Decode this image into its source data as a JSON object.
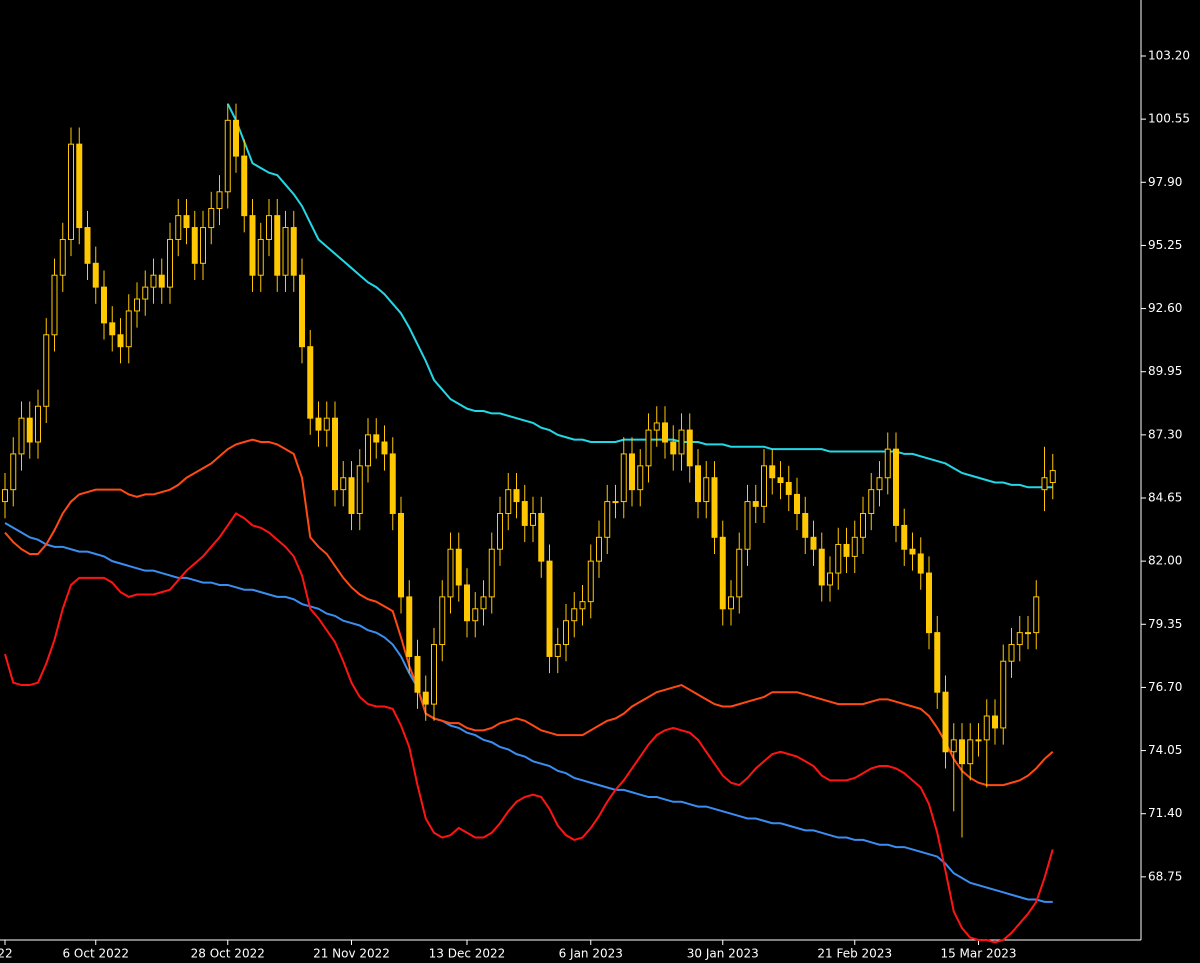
{
  "chart_data": {
    "type": "candlestick",
    "background": "#000000",
    "color": "#ffc800",
    "axis_color": "#ffffff",
    "ylim": [
      66.1,
      105.55
    ],
    "yticks": [
      {
        "value": 103.2,
        "label": "103.20"
      },
      {
        "value": 100.55,
        "label": "100.55"
      },
      {
        "value": 97.9,
        "label": "97.90"
      },
      {
        "value": 95.25,
        "label": "95.25"
      },
      {
        "value": 92.6,
        "label": "92.60"
      },
      {
        "value": 89.95,
        "label": "89.95"
      },
      {
        "value": 87.3,
        "label": "87.30"
      },
      {
        "value": 84.65,
        "label": "84.65"
      },
      {
        "value": 82,
        "label": "82.00"
      },
      {
        "value": 79.35,
        "label": "79.35"
      },
      {
        "value": 76.7,
        "label": "76.70"
      },
      {
        "value": 74.05,
        "label": "74.05"
      },
      {
        "value": 71.4,
        "label": "71.40"
      },
      {
        "value": 68.75,
        "label": "68.75"
      }
    ],
    "categories": [
      "22",
      null,
      null,
      null,
      null,
      null,
      null,
      null,
      null,
      null,
      null,
      "6 Oct 2022",
      null,
      null,
      null,
      null,
      null,
      null,
      null,
      null,
      null,
      null,
      null,
      null,
      null,
      null,
      null,
      "28 Oct 2022",
      null,
      null,
      null,
      null,
      null,
      null,
      null,
      null,
      null,
      null,
      null,
      null,
      null,
      null,
      "21 Nov 2022",
      null,
      null,
      null,
      null,
      null,
      null,
      null,
      null,
      null,
      null,
      null,
      null,
      null,
      "13 Dec 2022",
      null,
      null,
      null,
      null,
      null,
      null,
      null,
      null,
      null,
      null,
      null,
      null,
      null,
      null,
      "6 Jan 2023",
      null,
      null,
      null,
      null,
      null,
      null,
      null,
      null,
      null,
      null,
      null,
      null,
      null,
      null,
      null,
      "30 Jan 2023",
      null,
      null,
      null,
      null,
      null,
      null,
      null,
      null,
      null,
      null,
      null,
      null,
      null,
      null,
      null,
      "21 Feb 2023",
      null,
      null,
      null,
      null,
      null,
      null,
      null,
      null,
      null,
      null,
      null,
      null,
      null,
      null,
      "15 Mar 2023",
      null,
      null,
      null,
      null,
      null,
      null,
      null,
      null,
      null
    ],
    "open": [
      84.5,
      85.0,
      86.5,
      88.0,
      87.0,
      88.5,
      91.5,
      94.0,
      95.5,
      99.5,
      96.0,
      94.5,
      93.5,
      92.0,
      91.5,
      91.0,
      92.5,
      93.0,
      93.5,
      94.0,
      93.5,
      95.5,
      96.5,
      96.0,
      94.5,
      96.0,
      96.8,
      97.5,
      100.5,
      99.0,
      96.5,
      94.0,
      95.5,
      96.5,
      94.0,
      96.0,
      94.0,
      91.0,
      88.0,
      87.5,
      88.0,
      85.0,
      85.5,
      84.0,
      86.0,
      87.3,
      87.0,
      86.5,
      84.0,
      80.5,
      78.0,
      76.5,
      76.0,
      78.5,
      80.5,
      82.5,
      81.0,
      79.5,
      80.0,
      80.5,
      82.5,
      84.0,
      85.0,
      84.5,
      83.5,
      84.0,
      82.0,
      78.0,
      78.5,
      79.5,
      80.0,
      80.3,
      82.0,
      83.0,
      84.5,
      84.5,
      86.5,
      85.0,
      86.0,
      87.5,
      87.8,
      87.0,
      86.5,
      87.5,
      86.0,
      84.5,
      85.5,
      83.0,
      80.0,
      80.5,
      82.5,
      84.5,
      84.3,
      86.0,
      85.5,
      85.3,
      84.8,
      84.0,
      83.0,
      82.5,
      81.0,
      81.5,
      82.7,
      82.2,
      83.0,
      84.0,
      85.0,
      85.5,
      86.7,
      83.5,
      82.5,
      82.3,
      81.5,
      79.0,
      76.5,
      74.0,
      74.5,
      73.5,
      74.5,
      74.5,
      75.5,
      75.0,
      77.8,
      78.5,
      79.0,
      79.0,
      85.0,
      85.3
    ],
    "high": [
      85.7,
      87.2,
      88.7,
      88.7,
      89.2,
      92.2,
      94.7,
      96.2,
      100.2,
      100.2,
      96.7,
      95.2,
      94.2,
      92.7,
      92.2,
      93.2,
      93.7,
      94.2,
      94.7,
      94.7,
      96.2,
      97.2,
      97.2,
      96.7,
      96.7,
      97.5,
      98.2,
      101.2,
      101.2,
      99.7,
      97.2,
      96.2,
      97.2,
      97.2,
      96.7,
      96.7,
      94.7,
      91.7,
      88.7,
      88.7,
      88.7,
      86.2,
      86.2,
      86.7,
      88.0,
      88.0,
      87.7,
      87.2,
      84.7,
      81.2,
      78.7,
      77.2,
      79.2,
      81.2,
      83.2,
      83.2,
      81.7,
      80.7,
      81.2,
      83.2,
      84.7,
      85.7,
      85.7,
      85.2,
      84.7,
      84.7,
      82.7,
      79.2,
      80.2,
      80.7,
      81.0,
      82.7,
      83.7,
      85.2,
      85.2,
      87.2,
      87.2,
      86.7,
      88.2,
      88.5,
      88.5,
      87.7,
      88.2,
      88.2,
      86.7,
      86.2,
      86.2,
      83.7,
      81.2,
      83.2,
      85.2,
      85.2,
      86.7,
      86.7,
      86.2,
      86.0,
      85.5,
      84.7,
      83.7,
      83.2,
      82.2,
      83.4,
      83.4,
      83.7,
      84.7,
      85.7,
      86.2,
      87.4,
      87.4,
      84.2,
      83.2,
      83.0,
      82.2,
      79.7,
      77.2,
      75.2,
      75.2,
      75.2,
      75.2,
      76.2,
      76.2,
      78.5,
      79.2,
      79.7,
      79.7,
      81.2,
      86.8,
      86.5
    ],
    "low": [
      83.8,
      84.3,
      85.8,
      86.3,
      86.3,
      87.8,
      90.8,
      93.3,
      94.8,
      95.3,
      93.8,
      92.8,
      91.3,
      90.8,
      90.3,
      90.3,
      91.8,
      92.3,
      92.8,
      92.8,
      92.8,
      94.8,
      95.3,
      93.8,
      93.8,
      95.3,
      96.1,
      96.8,
      98.3,
      95.8,
      93.3,
      93.3,
      94.8,
      93.3,
      93.3,
      93.3,
      90.3,
      87.3,
      86.8,
      86.8,
      84.3,
      84.3,
      83.3,
      83.3,
      85.3,
      86.3,
      85.8,
      83.3,
      79.8,
      77.3,
      75.8,
      75.3,
      75.3,
      77.8,
      79.8,
      80.3,
      78.8,
      78.8,
      79.3,
      79.8,
      81.8,
      83.3,
      83.8,
      82.8,
      82.8,
      81.3,
      77.3,
      77.3,
      77.8,
      78.8,
      79.3,
      79.6,
      81.3,
      82.3,
      83.8,
      83.8,
      84.3,
      84.3,
      85.3,
      86.8,
      86.3,
      85.8,
      85.8,
      85.3,
      83.8,
      83.8,
      82.3,
      79.3,
      79.3,
      79.8,
      81.8,
      83.6,
      83.6,
      84.8,
      84.6,
      84.1,
      83.3,
      82.3,
      81.8,
      80.3,
      80.3,
      80.8,
      81.5,
      81.5,
      82.3,
      83.3,
      84.3,
      84.8,
      82.8,
      81.8,
      81.6,
      80.8,
      78.3,
      75.8,
      73.3,
      71.5,
      70.4,
      72.8,
      73.8,
      72.5,
      74.3,
      74.3,
      77.1,
      77.8,
      78.3,
      78.3,
      84.1,
      84.6
    ],
    "close": [
      85.0,
      86.5,
      88.0,
      87.0,
      88.5,
      91.5,
      94.0,
      95.5,
      99.5,
      96.0,
      94.5,
      93.5,
      92.0,
      91.5,
      91.0,
      92.5,
      93.0,
      93.5,
      94.0,
      93.5,
      95.5,
      96.5,
      96.0,
      94.5,
      96.0,
      96.8,
      97.5,
      100.5,
      99.0,
      96.5,
      94.0,
      95.5,
      96.5,
      94.0,
      96.0,
      94.0,
      91.0,
      88.0,
      87.5,
      88.0,
      85.0,
      85.5,
      84.0,
      86.0,
      87.3,
      87.0,
      86.5,
      84.0,
      80.5,
      78.0,
      76.5,
      76.0,
      78.5,
      80.5,
      82.5,
      81.0,
      79.5,
      80.0,
      80.5,
      82.5,
      84.0,
      85.0,
      84.5,
      83.5,
      84.0,
      82.0,
      78.0,
      78.5,
      79.5,
      80.0,
      80.3,
      82.0,
      83.0,
      84.5,
      84.5,
      86.5,
      85.0,
      86.0,
      87.5,
      87.8,
      87.0,
      86.5,
      87.5,
      86.0,
      84.5,
      85.5,
      83.0,
      80.0,
      80.5,
      82.5,
      84.5,
      84.3,
      86.0,
      85.5,
      85.3,
      84.8,
      84.0,
      83.0,
      82.5,
      81.0,
      81.5,
      82.7,
      82.2,
      83.0,
      84.0,
      85.0,
      85.5,
      86.7,
      83.5,
      82.5,
      82.3,
      81.5,
      79.0,
      76.5,
      74.0,
      74.5,
      73.5,
      74.5,
      74.5,
      75.5,
      75.0,
      77.8,
      78.5,
      79.0,
      79.0,
      80.5,
      85.5,
      85.8
    ],
    "series": [
      {
        "color": "#22d8e6",
        "values": [
          null,
          null,
          null,
          null,
          null,
          null,
          null,
          null,
          null,
          null,
          null,
          null,
          null,
          null,
          null,
          null,
          null,
          null,
          null,
          null,
          null,
          null,
          null,
          null,
          null,
          null,
          null,
          101.2,
          100.5,
          99.6,
          98.7,
          98.5,
          98.3,
          98.2,
          97.8,
          97.4,
          96.9,
          96.2,
          95.5,
          95.2,
          94.9,
          94.6,
          94.3,
          94.0,
          93.7,
          93.5,
          93.2,
          92.8,
          92.4,
          91.8,
          91.1,
          90.4,
          89.6,
          89.2,
          88.8,
          88.6,
          88.4,
          88.3,
          88.3,
          88.2,
          88.2,
          88.1,
          88.0,
          87.9,
          87.8,
          87.6,
          87.5,
          87.3,
          87.2,
          87.1,
          87.1,
          87.0,
          87.0,
          87.0,
          87.0,
          87.1,
          87.1,
          87.1,
          87.1,
          87.1,
          87.1,
          87.1,
          87.0,
          87.0,
          87.0,
          86.9,
          86.9,
          86.9,
          86.8,
          86.8,
          86.8,
          86.8,
          86.8,
          86.7,
          86.7,
          86.7,
          86.7,
          86.7,
          86.7,
          86.7,
          86.6,
          86.6,
          86.6,
          86.6,
          86.6,
          86.6,
          86.6,
          86.6,
          86.6,
          86.5,
          86.5,
          86.4,
          86.3,
          86.2,
          86.1,
          85.9,
          85.7,
          85.6,
          85.5,
          85.4,
          85.3,
          85.3,
          85.2,
          85.2,
          85.1,
          85.1,
          85.1,
          85.1
        ]
      },
      {
        "color": "#3b8ef0",
        "values": [
          83.6,
          83.4,
          83.2,
          83.0,
          82.9,
          82.7,
          82.6,
          82.6,
          82.5,
          82.4,
          82.4,
          82.3,
          82.2,
          82.0,
          81.9,
          81.8,
          81.7,
          81.6,
          81.6,
          81.5,
          81.4,
          81.3,
          81.3,
          81.2,
          81.1,
          81.1,
          81.0,
          81.0,
          80.9,
          80.8,
          80.8,
          80.7,
          80.6,
          80.5,
          80.5,
          80.4,
          80.2,
          80.1,
          80.0,
          79.8,
          79.7,
          79.5,
          79.4,
          79.3,
          79.1,
          79.0,
          78.8,
          78.5,
          78.0,
          77.3,
          76.7,
          75.6,
          75.4,
          75.3,
          75.1,
          75.0,
          74.8,
          74.7,
          74.5,
          74.4,
          74.2,
          74.1,
          73.9,
          73.8,
          73.6,
          73.5,
          73.4,
          73.2,
          73.1,
          72.9,
          72.8,
          72.7,
          72.6,
          72.5,
          72.4,
          72.4,
          72.3,
          72.2,
          72.1,
          72.1,
          72.0,
          71.9,
          71.9,
          71.8,
          71.7,
          71.7,
          71.6,
          71.5,
          71.4,
          71.3,
          71.2,
          71.2,
          71.1,
          71.0,
          71.0,
          70.9,
          70.8,
          70.7,
          70.7,
          70.6,
          70.5,
          70.4,
          70.4,
          70.3,
          70.3,
          70.2,
          70.1,
          70.1,
          70.0,
          70.0,
          69.9,
          69.8,
          69.7,
          69.6,
          69.3,
          68.9,
          68.7,
          68.5,
          68.4,
          68.3,
          68.2,
          68.1,
          68.0,
          67.9,
          67.8,
          67.8,
          67.7,
          67.7
        ]
      },
      {
        "color": "#ff4a14",
        "values": [
          83.2,
          82.8,
          82.5,
          82.3,
          82.3,
          82.7,
          83.3,
          84.0,
          84.5,
          84.8,
          84.9,
          85.0,
          85.0,
          85.0,
          85.0,
          84.8,
          84.7,
          84.8,
          84.8,
          84.9,
          85.0,
          85.2,
          85.5,
          85.7,
          85.9,
          86.1,
          86.4,
          86.7,
          86.9,
          87.0,
          87.1,
          87.0,
          87.0,
          86.9,
          86.7,
          86.5,
          85.5,
          83.0,
          82.6,
          82.3,
          81.8,
          81.3,
          80.9,
          80.6,
          80.4,
          80.3,
          80.1,
          79.9,
          78.8,
          77.6,
          76.7,
          75.6,
          75.4,
          75.3,
          75.2,
          75.2,
          75.0,
          74.9,
          74.9,
          75.0,
          75.2,
          75.3,
          75.4,
          75.3,
          75.1,
          74.9,
          74.8,
          74.7,
          74.7,
          74.7,
          74.7,
          74.9,
          75.1,
          75.3,
          75.4,
          75.6,
          75.9,
          76.1,
          76.3,
          76.5,
          76.6,
          76.7,
          76.8,
          76.6,
          76.4,
          76.2,
          76.0,
          75.9,
          75.9,
          76.0,
          76.1,
          76.2,
          76.3,
          76.5,
          76.5,
          76.5,
          76.5,
          76.4,
          76.3,
          76.2,
          76.1,
          76.0,
          76.0,
          76.0,
          76.0,
          76.1,
          76.2,
          76.2,
          76.1,
          76.0,
          75.9,
          75.8,
          75.5,
          75.0,
          74.4,
          73.7,
          73.2,
          72.9,
          72.7,
          72.6,
          72.6,
          72.6,
          72.7,
          72.8,
          73.0,
          73.3,
          73.7,
          74.0
        ]
      },
      {
        "color": "#ff1414",
        "values": [
          78.1,
          76.9,
          76.8,
          76.8,
          76.9,
          77.7,
          78.7,
          80.0,
          81.0,
          81.3,
          81.3,
          81.3,
          81.3,
          81.1,
          80.7,
          80.5,
          80.6,
          80.6,
          80.6,
          80.7,
          80.8,
          81.2,
          81.6,
          81.9,
          82.2,
          82.6,
          83.0,
          83.5,
          84.0,
          83.8,
          83.5,
          83.4,
          83.2,
          82.9,
          82.6,
          82.2,
          81.4,
          80.0,
          79.6,
          79.1,
          78.6,
          77.8,
          76.9,
          76.3,
          76.0,
          75.9,
          75.9,
          75.8,
          75.1,
          74.2,
          72.6,
          71.2,
          70.6,
          70.4,
          70.5,
          70.8,
          70.6,
          70.4,
          70.4,
          70.6,
          71.0,
          71.5,
          71.9,
          72.1,
          72.2,
          72.1,
          71.6,
          70.9,
          70.5,
          70.3,
          70.4,
          70.8,
          71.3,
          71.9,
          72.4,
          72.8,
          73.3,
          73.8,
          74.3,
          74.7,
          74.9,
          75.0,
          74.9,
          74.8,
          74.5,
          74.0,
          73.5,
          73.0,
          72.7,
          72.6,
          72.9,
          73.3,
          73.6,
          73.9,
          74.0,
          73.9,
          73.8,
          73.6,
          73.4,
          73.0,
          72.8,
          72.8,
          72.8,
          72.9,
          73.1,
          73.3,
          73.4,
          73.4,
          73.3,
          73.1,
          72.8,
          72.5,
          71.8,
          70.6,
          69.0,
          67.3,
          66.6,
          66.2,
          66.1,
          66.1,
          66.0,
          66.1,
          66.4,
          66.8,
          67.2,
          67.7,
          68.7,
          69.9
        ]
      }
    ]
  }
}
